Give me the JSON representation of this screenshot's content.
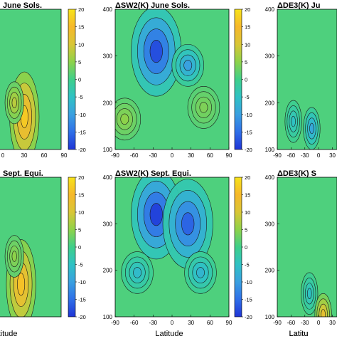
{
  "chart_data": [
    {
      "type": "heatmap",
      "title": "June Sols.",
      "xticks": [
        "0",
        "30",
        "60",
        "90"
      ],
      "yticks": [],
      "colorbar_ticks": [
        "20",
        "15",
        "10",
        "5",
        "0",
        "-5",
        "-10",
        "-15",
        "-20"
      ],
      "clim": [
        -20,
        20
      ],
      "xlabel": "",
      "features": [
        {
          "x": 35,
          "y": 170,
          "value": 17
        },
        {
          "x": 20,
          "y": 200,
          "value": 8
        }
      ]
    },
    {
      "type": "heatmap",
      "title": "ΔSW2(K)  June Sols.",
      "xticks": [
        "-90",
        "-60",
        "-30",
        "0",
        "30",
        "60",
        "90"
      ],
      "yticks": [
        "400",
        "300",
        "200",
        "100"
      ],
      "colorbar_ticks": [
        "20",
        "15",
        "10",
        "5",
        "0",
        "-5",
        "-10",
        "-15",
        "-20"
      ],
      "xlim": [
        -90,
        90
      ],
      "ylim": [
        100,
        400
      ],
      "clim": [
        -20,
        20
      ],
      "xlabel": "",
      "features": [
        {
          "x": -25,
          "y": 310,
          "value": -18
        },
        {
          "x": 25,
          "y": 280,
          "value": -10
        },
        {
          "x": -75,
          "y": 165,
          "value": 5
        },
        {
          "x": 50,
          "y": 190,
          "value": 4
        }
      ]
    },
    {
      "type": "heatmap",
      "title": "ΔDE3(K)  Ju",
      "xticks": [
        "-90",
        "-60",
        "-30",
        "0",
        "30"
      ],
      "yticks": [
        "400",
        "300",
        "200",
        "100"
      ],
      "xlim": [
        -90,
        40
      ],
      "ylim": [
        100,
        400
      ],
      "clim": [
        -20,
        20
      ],
      "xlabel": "Latitu",
      "features": [
        {
          "x": -15,
          "y": 145,
          "value": -9
        },
        {
          "x": -55,
          "y": 160,
          "value": -5
        }
      ]
    },
    {
      "type": "heatmap",
      "title": "Sept. Equi.",
      "xticks": [],
      "yticks": [],
      "colorbar_ticks": [
        "20",
        "15",
        "10",
        "5",
        "0",
        "-5",
        "-10",
        "-15",
        "-20"
      ],
      "clim": [
        -20,
        20
      ],
      "xlabel": "atitude",
      "features": [
        {
          "x": 30,
          "y": 170,
          "value": 16
        },
        {
          "x": 20,
          "y": 230,
          "value": 5
        }
      ]
    },
    {
      "type": "heatmap",
      "title": "ΔSW2(K)  Sept. Equi.",
      "xticks": [
        "-90",
        "-60",
        "-30",
        "0",
        "30",
        "60",
        "90"
      ],
      "yticks": [
        "400",
        "300",
        "200",
        "100"
      ],
      "colorbar_ticks": [
        "20",
        "15",
        "10",
        "5",
        "0",
        "-5",
        "-10",
        "-15",
        "-20"
      ],
      "xlim": [
        -90,
        90
      ],
      "ylim": [
        100,
        400
      ],
      "clim": [
        -20,
        20
      ],
      "xlabel": "Latitude",
      "features": [
        {
          "x": -25,
          "y": 320,
          "value": -19
        },
        {
          "x": 25,
          "y": 300,
          "value": -16
        },
        {
          "x": -55,
          "y": 195,
          "value": -6
        },
        {
          "x": 45,
          "y": 195,
          "value": -7
        }
      ]
    },
    {
      "type": "heatmap",
      "title": "ΔDE3(K)  S",
      "xticks": [
        "-90",
        "-60",
        "-30",
        "0",
        "30"
      ],
      "yticks": [
        "400",
        "300",
        "200",
        "100"
      ],
      "xlim": [
        -90,
        40
      ],
      "ylim": [
        100,
        400
      ],
      "clim": [
        -20,
        20
      ],
      "xlabel": "Latitu",
      "features": [
        {
          "x": -20,
          "y": 150,
          "value": -5
        },
        {
          "x": 10,
          "y": 105,
          "value": 12
        }
      ]
    }
  ]
}
